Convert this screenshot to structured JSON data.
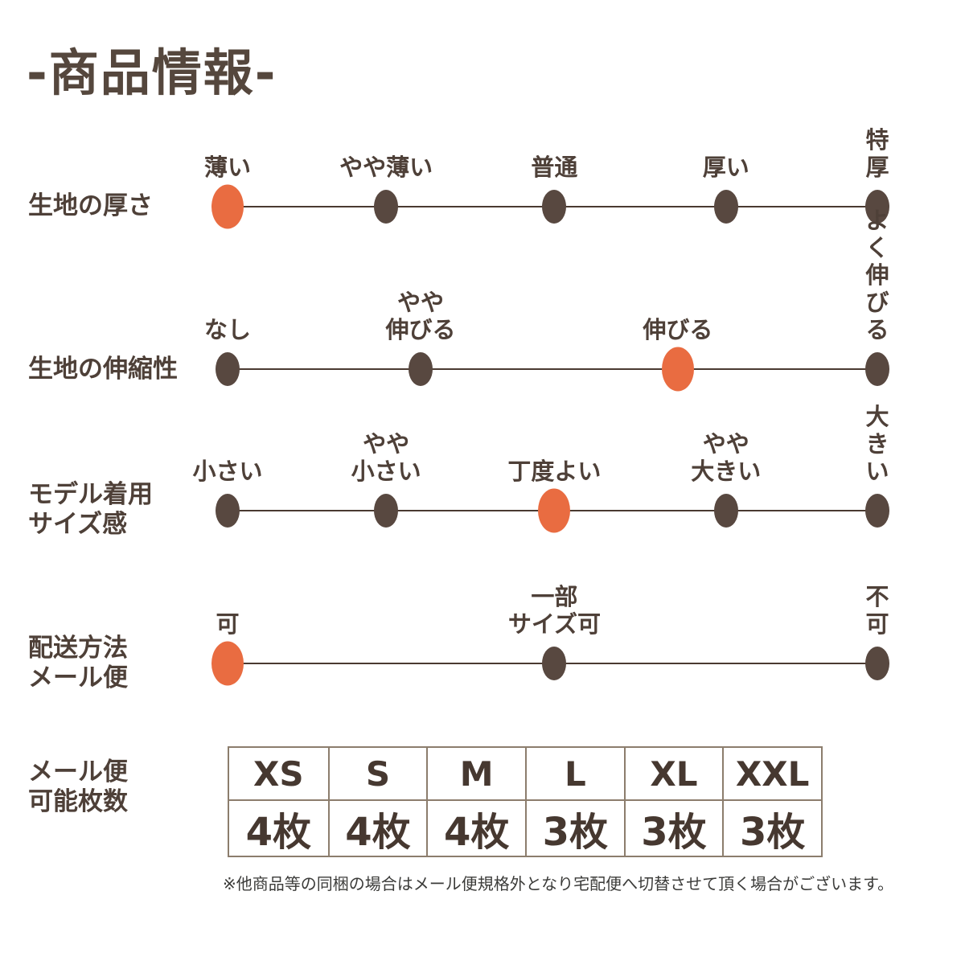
{
  "page": {
    "title": "-商品情報-",
    "footnote": "※他商品等の同梱の場合はメール便規格外となり宅配便へ切替させて頂く場合がございます。"
  },
  "colors": {
    "accent_orange": "#E96C41",
    "dot_brown": "#584840",
    "text_brown": "#4E4038",
    "line_brown": "#4A3A31",
    "table_border": "#8C7D6D",
    "footnote_text": "#3B3B39"
  },
  "scales": [
    {
      "label": "生地の厚さ",
      "selected_value": "薄い",
      "points": [
        {
          "label": "薄い",
          "pos": 0,
          "selected": true
        },
        {
          "label": "やや薄い",
          "pos": 24.4,
          "selected": false
        },
        {
          "label": "普通",
          "pos": 50.3,
          "selected": false
        },
        {
          "label": "厚い",
          "pos": 76.7,
          "selected": false
        },
        {
          "label": "特厚",
          "pos": 100,
          "selected": false
        }
      ]
    },
    {
      "label": "生地の伸縮性",
      "selected_value": "伸びる",
      "points": [
        {
          "label": "なし",
          "pos": 0,
          "selected": false
        },
        {
          "label": "やや\n伸びる",
          "pos": 29.7,
          "selected": false
        },
        {
          "label": "伸びる",
          "pos": 69.3,
          "selected": true
        },
        {
          "label": "よく\n伸びる",
          "pos": 100,
          "selected": false
        }
      ]
    },
    {
      "label": "モデル着用\nサイズ感",
      "selected_value": "丁度よい",
      "points": [
        {
          "label": "小さい",
          "pos": 0,
          "selected": false
        },
        {
          "label": "やや\n小さい",
          "pos": 24.4,
          "selected": false
        },
        {
          "label": "丁度よい",
          "pos": 50.3,
          "selected": true
        },
        {
          "label": "やや\n大きい",
          "pos": 76.7,
          "selected": false
        },
        {
          "label": "大きい",
          "pos": 100,
          "selected": false
        }
      ]
    },
    {
      "label": "配送方法\nメール便",
      "selected_value": "可",
      "points": [
        {
          "label": "可",
          "pos": 0,
          "selected": true
        },
        {
          "label": "一部\nサイズ可",
          "pos": 50.3,
          "selected": false
        },
        {
          "label": "不可",
          "pos": 100,
          "selected": false
        }
      ]
    }
  ],
  "size_table": {
    "label": "メール便\n可能枚数",
    "headers": [
      "XS",
      "S",
      "M",
      "L",
      "XL",
      "XXL"
    ],
    "values": [
      "4枚",
      "4枚",
      "4枚",
      "3枚",
      "3枚",
      "3枚"
    ]
  }
}
